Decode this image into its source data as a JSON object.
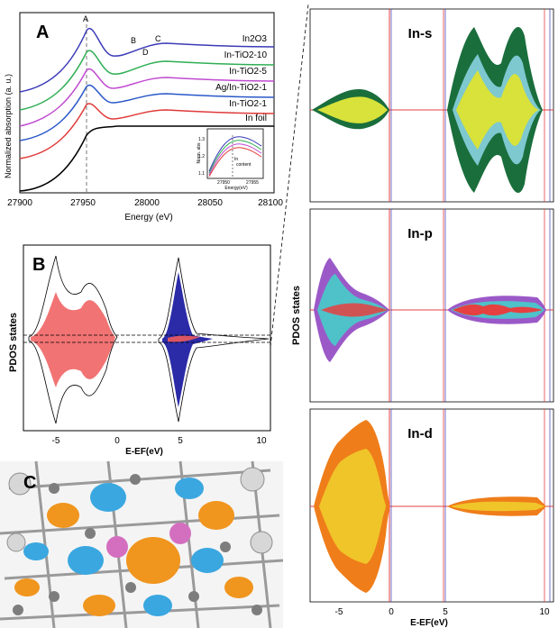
{
  "panels": {
    "A": {
      "label": "A",
      "xlabel": "Energy (eV)",
      "ylabel": "Normalized absorption (a. u.)",
      "xticks": [
        "27900",
        "27950",
        "28000",
        "28050",
        "28100"
      ],
      "peaks": [
        "A",
        "B",
        "C",
        "D"
      ],
      "series": [
        "In2O3",
        "In-TiO2-10",
        "In-TiO2-5",
        "Ag/In-TiO2-1",
        "In-TiO2-1",
        "In foil"
      ],
      "series_colors": [
        "#3b3bb8",
        "#2fae54",
        "#c04bd0",
        "#2a58c8",
        "#e03a3a",
        "#000000"
      ],
      "inset": {
        "ylabel": "Norm. abs",
        "yticks": [
          "1.3",
          "1.2",
          "1.1"
        ],
        "xticks": [
          "27950",
          "27955"
        ],
        "xlabel": "Energy(eV)",
        "annotation_line1": "In",
        "annotation_line2": "content"
      }
    },
    "B": {
      "label": "B",
      "ylabel": "PDOS states",
      "xlabel": "E-EF(eV)",
      "xticks": [
        "-5",
        "0",
        "5",
        "10"
      ],
      "colors": {
        "red": "#ee5a5a",
        "blue": "#2b2ba8"
      }
    },
    "C": {
      "label": "C"
    },
    "right": {
      "ylabel": "PDOS states",
      "xlabel": "E-EF(eV)",
      "xticks": [
        "-5",
        "0",
        "5",
        "10"
      ],
      "rows": [
        {
          "label": "In-s",
          "colors": [
            "#1a6e3c",
            "#7ec8d0",
            "#d8e23a"
          ]
        },
        {
          "label": "In-p",
          "colors": [
            "#9b59c8",
            "#4fc1c9",
            "#e64040"
          ]
        },
        {
          "label": "In-d",
          "colors": [
            "#ef7d1a",
            "#f0c52a",
            "#e64040"
          ]
        }
      ]
    }
  }
}
